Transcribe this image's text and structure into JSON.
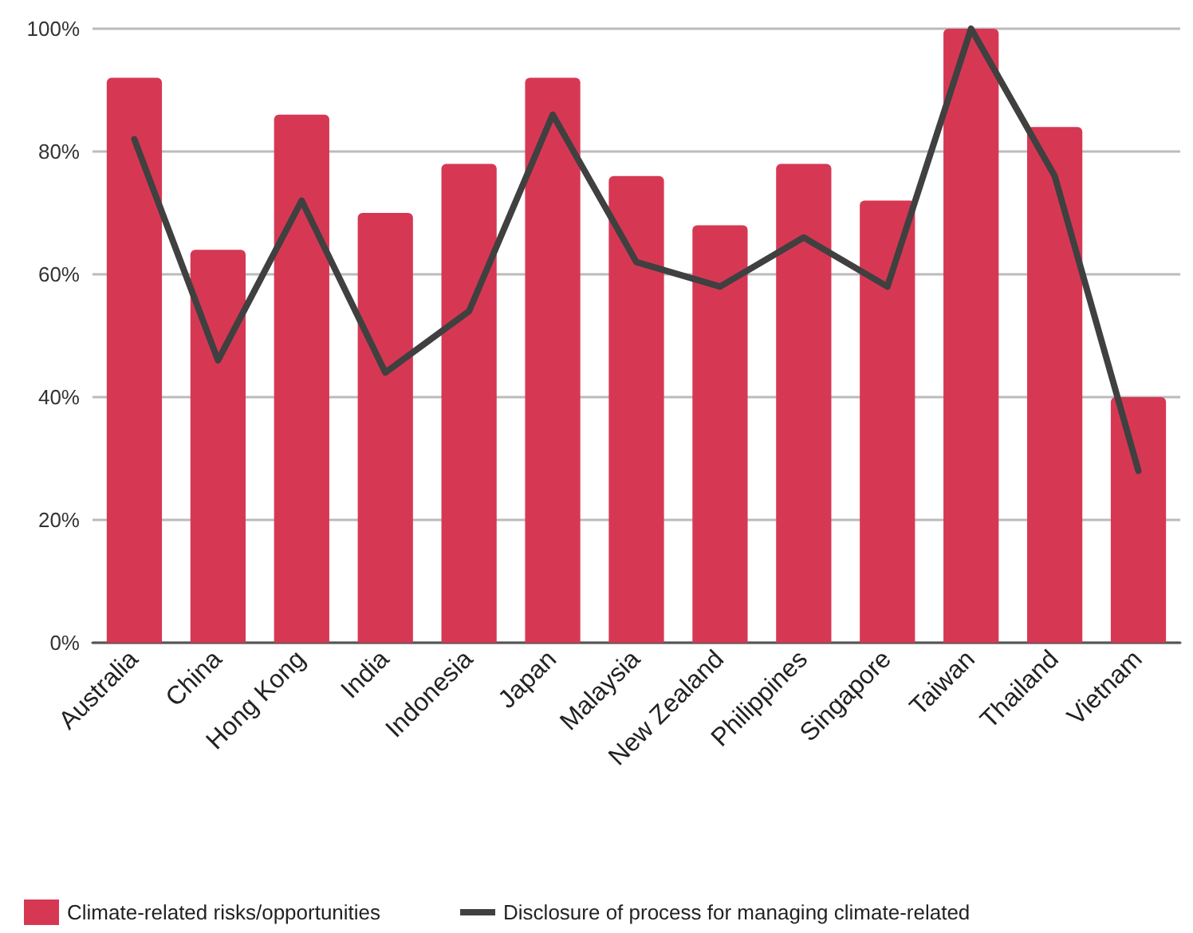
{
  "chart_data": {
    "type": "bar",
    "categories": [
      "Australia",
      "China",
      "Hong Kong",
      "India",
      "Indonesia",
      "Japan",
      "Malaysia",
      "New Zealand",
      "Philippines",
      "Singapore",
      "Taiwan",
      "Thailand",
      "Vietnam"
    ],
    "series": [
      {
        "name": "Climate-related risks/opportunities",
        "color": "#d63854",
        "values": [
          92,
          64,
          86,
          70,
          78,
          92,
          76,
          68,
          78,
          72,
          100,
          84,
          40
        ]
      },
      {
        "name": "Disclosure of process for managing climate-related",
        "type": "line",
        "color": "#404040",
        "values": [
          82,
          46,
          72,
          44,
          54,
          86,
          62,
          58,
          66,
          58,
          100,
          76,
          28
        ]
      }
    ],
    "ylim": [
      0,
      100
    ],
    "yticks": [
      {
        "value": 0,
        "label": "0%"
      },
      {
        "value": 20,
        "label": "20%"
      },
      {
        "value": 40,
        "label": "40%"
      },
      {
        "value": 60,
        "label": "60%"
      },
      {
        "value": 80,
        "label": "80%"
      },
      {
        "value": 100,
        "label": "100%"
      }
    ],
    "grid": "y",
    "legend": "bottom",
    "marker": "none",
    "line_style": "solid"
  }
}
